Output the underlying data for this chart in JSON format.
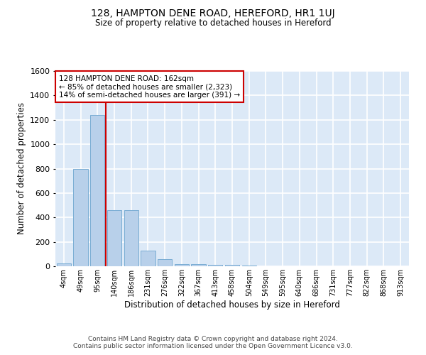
{
  "title1": "128, HAMPTON DENE ROAD, HEREFORD, HR1 1UJ",
  "title2": "Size of property relative to detached houses in Hereford",
  "xlabel": "Distribution of detached houses by size in Hereford",
  "ylabel": "Number of detached properties",
  "bar_labels": [
    "4sqm",
    "49sqm",
    "95sqm",
    "140sqm",
    "186sqm",
    "231sqm",
    "276sqm",
    "322sqm",
    "367sqm",
    "413sqm",
    "458sqm",
    "504sqm",
    "549sqm",
    "595sqm",
    "640sqm",
    "686sqm",
    "731sqm",
    "777sqm",
    "822sqm",
    "868sqm",
    "913sqm"
  ],
  "bar_values": [
    25,
    800,
    1240,
    460,
    460,
    130,
    60,
    20,
    20,
    10,
    10,
    5,
    0,
    0,
    0,
    0,
    0,
    0,
    0,
    0,
    0
  ],
  "bar_color": "#b8d0ea",
  "bar_edge_color": "#7aadd4",
  "vline_color": "#cc0000",
  "vline_pos": 2.5,
  "annotation_text": "128 HAMPTON DENE ROAD: 162sqm\n← 85% of detached houses are smaller (2,323)\n14% of semi-detached houses are larger (391) →",
  "annotation_box_color": "#ffffff",
  "annotation_box_edge": "#cc0000",
  "ylim": [
    0,
    1600
  ],
  "yticks": [
    0,
    200,
    400,
    600,
    800,
    1000,
    1200,
    1400,
    1600
  ],
  "footer": "Contains HM Land Registry data © Crown copyright and database right 2024.\nContains public sector information licensed under the Open Government Licence v3.0.",
  "fig_bg_color": "#ffffff",
  "plot_bg_color": "#dce9f7",
  "grid_color": "#ffffff",
  "title_color": "#000000",
  "footer_color": "#444444"
}
